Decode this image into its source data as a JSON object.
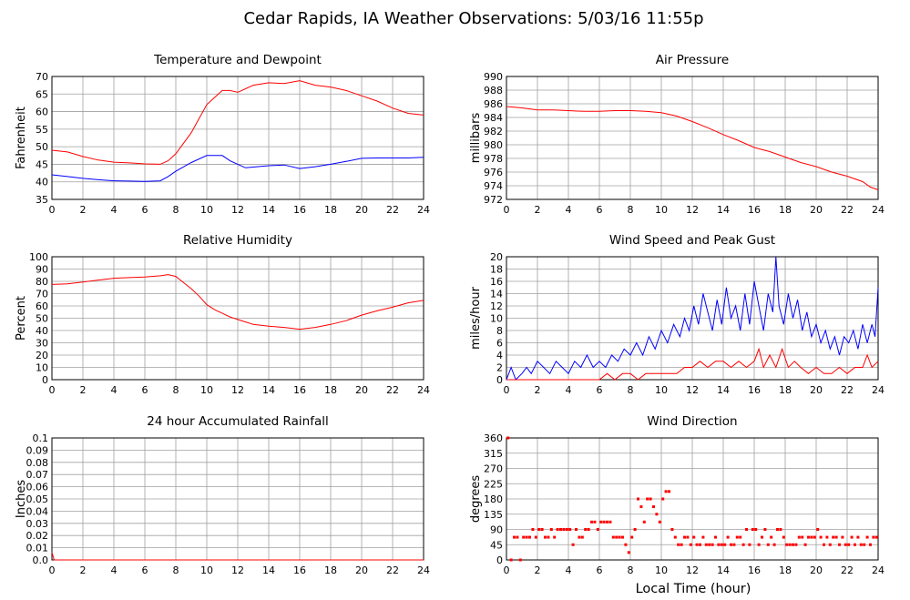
{
  "title": "Cedar Rapids, IA Weather Observations: 5/03/16 11:55p",
  "xlabel": "Local Time (hour)",
  "colors": {
    "red": "#ff0000",
    "blue": "#0000ff",
    "grid": "#a0a0a0"
  },
  "chart_data": [
    {
      "id": "temp",
      "type": "line",
      "title": "Temperature and Dewpoint",
      "ylabel": "Fahrenheit",
      "xlim": [
        0,
        24
      ],
      "ylim": [
        35,
        70
      ],
      "yticks": [
        35,
        40,
        45,
        50,
        55,
        60,
        65,
        70
      ],
      "xticks": [
        0,
        2,
        4,
        6,
        8,
        10,
        12,
        14,
        16,
        18,
        20,
        22,
        24
      ],
      "grid": true,
      "series": [
        {
          "color": "#ff0000",
          "x": [
            0,
            1,
            2,
            3,
            4,
            5,
            6,
            7,
            7.5,
            8,
            8.5,
            9,
            9.5,
            10,
            10.5,
            11,
            11.5,
            12,
            12.5,
            13,
            14,
            15,
            16,
            17,
            18,
            19,
            20,
            21,
            22,
            23,
            24
          ],
          "y": [
            49,
            48.5,
            47.2,
            46.2,
            45.6,
            45.4,
            45.1,
            45.0,
            46,
            48,
            51,
            54,
            58,
            62,
            64,
            66,
            66,
            65.5,
            66.5,
            67.5,
            68.2,
            68,
            68.8,
            67.5,
            67,
            66,
            64.5,
            63,
            61,
            59.5,
            59
          ]
        },
        {
          "color": "#0000ff",
          "x": [
            0,
            1,
            2,
            3,
            4,
            5,
            6,
            7,
            7.5,
            8,
            9,
            10,
            11,
            11.5,
            12,
            12.5,
            13,
            14,
            15,
            16,
            17,
            18,
            19,
            20,
            21,
            22,
            23,
            24
          ],
          "y": [
            42,
            41.5,
            41,
            40.6,
            40.3,
            40.2,
            40.1,
            40.3,
            41.5,
            43,
            45.5,
            47.5,
            47.5,
            46,
            45,
            44,
            44.2,
            44.6,
            44.8,
            43.8,
            44.3,
            45,
            45.8,
            46.7,
            46.8,
            46.8,
            46.8,
            47
          ]
        }
      ]
    },
    {
      "id": "pressure",
      "type": "line",
      "title": "Air Pressure",
      "ylabel": "millibars",
      "xlim": [
        0,
        24
      ],
      "ylim": [
        972,
        990
      ],
      "yticks": [
        972,
        974,
        976,
        978,
        980,
        982,
        984,
        986,
        988,
        990
      ],
      "xticks": [
        0,
        2,
        4,
        6,
        8,
        10,
        12,
        14,
        16,
        18,
        20,
        22,
        24
      ],
      "grid": true,
      "series": [
        {
          "color": "#ff0000",
          "x": [
            0,
            1,
            2,
            3,
            4,
            5,
            6,
            7,
            8,
            9,
            10,
            11,
            12,
            13,
            14,
            15,
            16,
            17,
            18,
            19,
            20,
            21,
            22,
            23,
            23.5,
            24
          ],
          "y": [
            985.6,
            985.4,
            985.1,
            985.1,
            985.0,
            984.9,
            984.9,
            985.0,
            985.0,
            984.9,
            984.7,
            984.2,
            983.4,
            982.5,
            981.5,
            980.6,
            979.6,
            979.0,
            978.2,
            977.4,
            976.8,
            976.0,
            975.4,
            974.6,
            973.8,
            973.4
          ]
        }
      ]
    },
    {
      "id": "humidity",
      "type": "line",
      "title": "Relative Humidity",
      "ylabel": "Percent",
      "xlim": [
        0,
        24
      ],
      "ylim": [
        0,
        100
      ],
      "yticks": [
        0,
        10,
        20,
        30,
        40,
        50,
        60,
        70,
        80,
        90,
        100
      ],
      "xticks": [
        0,
        2,
        4,
        6,
        8,
        10,
        12,
        14,
        16,
        18,
        20,
        22,
        24
      ],
      "grid": true,
      "series": [
        {
          "color": "#ff0000",
          "x": [
            0,
            1,
            2,
            3,
            4,
            5,
            6,
            7,
            7.5,
            8,
            8.5,
            9,
            9.5,
            10,
            10.5,
            11,
            11.5,
            12,
            12.5,
            13,
            14,
            15,
            16,
            17,
            18,
            19,
            20,
            21,
            22,
            23,
            24
          ],
          "y": [
            77.5,
            78,
            79.5,
            81,
            82.5,
            83,
            83.5,
            84.5,
            85.5,
            84,
            79,
            74,
            68,
            61,
            57,
            54,
            51,
            49,
            47,
            45,
            43.5,
            42.5,
            41,
            42.5,
            45,
            48,
            52.5,
            56,
            59,
            62.5,
            64.5
          ]
        }
      ]
    },
    {
      "id": "wind",
      "type": "line",
      "title": "Wind Speed and Peak Gust",
      "ylabel": "miles/hour",
      "xlim": [
        0,
        24
      ],
      "ylim": [
        0,
        20
      ],
      "yticks": [
        0,
        2,
        4,
        6,
        8,
        10,
        12,
        14,
        16,
        18,
        20
      ],
      "xticks": [
        0,
        2,
        4,
        6,
        8,
        10,
        12,
        14,
        16,
        18,
        20,
        22,
        24
      ],
      "grid": true,
      "series": [
        {
          "color": "#0000ff",
          "x": [
            0,
            0.3,
            0.6,
            1,
            1.3,
            1.6,
            2,
            2.4,
            2.8,
            3.2,
            3.6,
            4,
            4.4,
            4.8,
            5.2,
            5.6,
            6,
            6.4,
            6.8,
            7.2,
            7.6,
            8,
            8.4,
            8.8,
            9.2,
            9.6,
            10,
            10.4,
            10.8,
            11.2,
            11.5,
            11.8,
            12.1,
            12.4,
            12.7,
            13,
            13.3,
            13.6,
            13.9,
            14.2,
            14.5,
            14.8,
            15.1,
            15.4,
            15.7,
            16,
            16.3,
            16.6,
            16.9,
            17.2,
            17.4,
            17.6,
            17.9,
            18.2,
            18.5,
            18.8,
            19.1,
            19.4,
            19.7,
            20,
            20.3,
            20.6,
            20.9,
            21.2,
            21.5,
            21.8,
            22.1,
            22.4,
            22.7,
            23,
            23.3,
            23.6,
            23.8,
            24
          ],
          "y": [
            0,
            2,
            0,
            1,
            2,
            1,
            3,
            2,
            1,
            3,
            2,
            1,
            3,
            2,
            4,
            2,
            3,
            2,
            4,
            3,
            5,
            4,
            6,
            4,
            7,
            5,
            8,
            6,
            9,
            7,
            10,
            8,
            12,
            9,
            14,
            11,
            8,
            13,
            9,
            15,
            10,
            12,
            8,
            14,
            9,
            16,
            12,
            8,
            14,
            11,
            20,
            12,
            9,
            14,
            10,
            13,
            8,
            11,
            7,
            9,
            6,
            8,
            5,
            7,
            4,
            7,
            6,
            8,
            5,
            9,
            6,
            9,
            7,
            15
          ]
        },
        {
          "color": "#ff0000",
          "x": [
            0,
            1,
            2,
            3,
            4,
            5,
            6,
            6.5,
            7,
            7.5,
            8,
            8.5,
            9,
            9.5,
            10,
            10.5,
            11,
            11.5,
            12,
            12.5,
            13,
            13.5,
            14,
            14.5,
            15,
            15.5,
            16,
            16.3,
            16.6,
            17,
            17.4,
            17.8,
            18.2,
            18.6,
            19,
            19.5,
            20,
            20.5,
            21,
            21.5,
            22,
            22.5,
            23,
            23.3,
            23.6,
            24
          ],
          "y": [
            0,
            0,
            0,
            0,
            0,
            0,
            0,
            1,
            0,
            1,
            1,
            0,
            1,
            1,
            1,
            1,
            1,
            2,
            2,
            3,
            2,
            3,
            3,
            2,
            3,
            2,
            3,
            5,
            2,
            4,
            2,
            5,
            2,
            3,
            2,
            1,
            2,
            1,
            1,
            2,
            1,
            2,
            2,
            4,
            2,
            3
          ]
        }
      ]
    },
    {
      "id": "rain",
      "type": "line",
      "title": "24 hour Accumulated Rainfall",
      "ylabel": "Inches",
      "xlim": [
        0,
        24
      ],
      "ylim": [
        0,
        0.1
      ],
      "yticks": [
        "0.0",
        "0.01",
        "0.02",
        "0.03",
        "0.04",
        "0.05",
        "0.06",
        "0.07",
        "0.08",
        "0.09",
        "0.1"
      ],
      "xticks": [
        0,
        2,
        4,
        6,
        8,
        10,
        12,
        14,
        16,
        18,
        20,
        22,
        24
      ],
      "grid": true,
      "series": [
        {
          "color": "#ff0000",
          "x": [
            0,
            0.05,
            0.15,
            24
          ],
          "y": [
            0.006,
            0.004,
            0,
            0
          ]
        }
      ]
    },
    {
      "id": "direction",
      "type": "scatter",
      "title": "Wind Direction",
      "ylabel": "degrees",
      "xlim": [
        0,
        24
      ],
      "ylim": [
        0,
        360
      ],
      "yticks": [
        0,
        45,
        90,
        135,
        180,
        225,
        270,
        315,
        360
      ],
      "xticks": [
        0,
        2,
        4,
        6,
        8,
        10,
        12,
        14,
        16,
        18,
        20,
        22,
        24
      ],
      "grid": true,
      "series": [
        {
          "color": "#ff0000",
          "x": [
            0.1,
            0.3,
            0.5,
            0.7,
            0.9,
            1.1,
            1.3,
            1.5,
            1.7,
            1.9,
            2.1,
            2.3,
            2.5,
            2.7,
            2.9,
            3.1,
            3.3,
            3.5,
            3.7,
            3.9,
            4.1,
            4.3,
            4.5,
            4.7,
            4.9,
            5.1,
            5.3,
            5.5,
            5.7,
            5.9,
            6.1,
            6.3,
            6.5,
            6.7,
            6.9,
            7.1,
            7.3,
            7.5,
            7.7,
            7.9,
            8.1,
            8.3,
            8.5,
            8.7,
            8.9,
            9.1,
            9.3,
            9.5,
            9.7,
            9.9,
            10.1,
            10.3,
            10.5,
            10.7,
            10.9,
            11.1,
            11.3,
            11.5,
            11.7,
            11.9,
            12.1,
            12.3,
            12.5,
            12.7,
            12.9,
            13.1,
            13.3,
            13.5,
            13.7,
            13.9,
            14.1,
            14.3,
            14.5,
            14.7,
            14.9,
            15.1,
            15.3,
            15.5,
            15.7,
            15.9,
            16.1,
            16.3,
            16.5,
            16.7,
            16.9,
            17.1,
            17.3,
            17.5,
            17.7,
            17.9,
            18.1,
            18.3,
            18.5,
            18.7,
            18.9,
            19.1,
            19.3,
            19.5,
            19.7,
            19.9,
            20.1,
            20.3,
            20.5,
            20.7,
            20.9,
            21.1,
            21.3,
            21.5,
            21.7,
            21.9,
            22.1,
            22.3,
            22.5,
            22.7,
            22.9,
            23.1,
            23.3,
            23.5,
            23.7,
            23.9
          ],
          "y": [
            360,
            0,
            67,
            67,
            0,
            67,
            67,
            67,
            90,
            67,
            90,
            90,
            67,
            67,
            90,
            67,
            90,
            90,
            90,
            90,
            90,
            45,
            90,
            67,
            67,
            90,
            90,
            112,
            112,
            90,
            112,
            112,
            112,
            112,
            67,
            67,
            67,
            67,
            45,
            22,
            67,
            90,
            180,
            157,
            112,
            180,
            180,
            157,
            135,
            112,
            180,
            202,
            202,
            90,
            67,
            45,
            45,
            67,
            67,
            45,
            67,
            45,
            45,
            67,
            45,
            45,
            45,
            67,
            45,
            45,
            45,
            67,
            45,
            45,
            67,
            67,
            45,
            90,
            45,
            90,
            90,
            45,
            67,
            90,
            45,
            67,
            45,
            90,
            90,
            67,
            45,
            45,
            45,
            45,
            67,
            67,
            45,
            67,
            67,
            67,
            90,
            67,
            45,
            67,
            45,
            67,
            67,
            45,
            67,
            45,
            45,
            67,
            45,
            67,
            45,
            45,
            67,
            45,
            67,
            67
          ]
        }
      ]
    }
  ]
}
